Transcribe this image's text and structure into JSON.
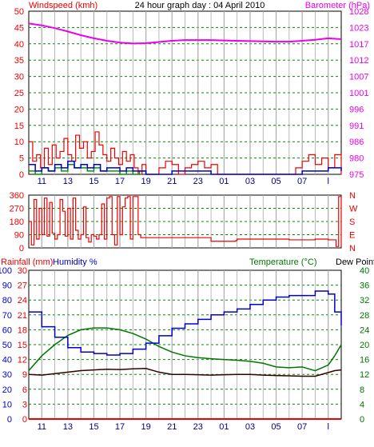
{
  "colors": {
    "wind": "#ee0000",
    "gust": "#ee0000",
    "wind_avg": "#0000cc",
    "wind_green": "#009900",
    "barometer": "#ee00ee",
    "direction": "#ee0000",
    "rain": "#ee0000",
    "humidity": "#0000cc",
    "temperature": "#007700",
    "dewpoint": "#330000",
    "grid_h": "#008800",
    "grid_v": "#aaaaaa",
    "hour_labels": "#000080"
  },
  "chart_data": [
    {
      "type": "line",
      "title": "24 hour graph day : 04 April 2010",
      "ylabel_left": "Windspeed (kmh)",
      "ylabel_right": "Barometer (hPa)",
      "x_ticks": [
        "11",
        "13",
        "15",
        "17",
        "19",
        "21",
        "23",
        "01",
        "03",
        "05",
        "07",
        "l"
      ],
      "left_ticks": [
        "0",
        "5",
        "10",
        "15",
        "20",
        "25",
        "30",
        "35",
        "40",
        "45",
        "50"
      ],
      "right_ticks": [
        "975",
        "980",
        "986",
        "991",
        "996",
        "1001",
        "1007",
        "1012",
        "1017",
        "1023",
        "1028"
      ],
      "ylim_left": [
        0,
        50
      ],
      "ylim_right": [
        975,
        1028
      ],
      "series": [
        {
          "name": "barometer",
          "x": [
            9,
            10,
            11,
            12,
            13,
            14,
            15,
            16,
            17,
            18,
            19,
            20,
            21,
            22,
            23,
            24,
            25,
            26,
            27,
            28,
            29,
            30,
            31,
            32,
            33
          ],
          "values": [
            1024,
            1023.4,
            1022.5,
            1021.4,
            1020.2,
            1019.2,
            1018.4,
            1017.8,
            1017.5,
            1017.6,
            1018,
            1018.4,
            1018.6,
            1018.6,
            1018.6,
            1018.5,
            1018.4,
            1018.3,
            1018.2,
            1018.1,
            1018.1,
            1018.4,
            1018.7,
            1019.2,
            1018.9
          ]
        },
        {
          "name": "gust",
          "x": [
            9,
            9.3,
            9.6,
            9.9,
            10.2,
            10.5,
            10.8,
            11.1,
            11.4,
            11.7,
            12,
            12.3,
            12.6,
            12.9,
            13.2,
            13.5,
            13.8,
            14.1,
            14.4,
            14.7,
            15,
            15.3,
            15.6,
            15.9,
            16.2,
            16.5,
            16.8,
            17.1,
            17.4,
            17.7,
            18,
            18.5,
            19,
            19.5,
            20,
            20.5,
            21,
            21.5,
            22,
            22.5,
            23,
            23.5,
            24,
            24.5,
            25,
            25.5,
            26,
            26.5,
            27,
            27.5,
            28,
            28.5,
            29,
            29.5,
            30,
            30.5,
            31,
            31.5,
            32,
            32.5,
            33
          ],
          "values": [
            10,
            4,
            6,
            2,
            8,
            3,
            9,
            5,
            7,
            11,
            6,
            4,
            12,
            8,
            10,
            5,
            7,
            13,
            9,
            6,
            4,
            8,
            5,
            3,
            7,
            4,
            6,
            2,
            0,
            3,
            0,
            0,
            2,
            4,
            3,
            0,
            2,
            3,
            4,
            2,
            3,
            0,
            0,
            0,
            0,
            0,
            0,
            0,
            0,
            0,
            0,
            0,
            0,
            2,
            4,
            6,
            3,
            5,
            2,
            6,
            0
          ]
        },
        {
          "name": "wind",
          "x": [
            9,
            9.5,
            10,
            10.5,
            11,
            11.5,
            12,
            12.5,
            13,
            13.5,
            14,
            14.5,
            15,
            15.5,
            16,
            16.5,
            17,
            17.5,
            18,
            19,
            20,
            21,
            22,
            23,
            24,
            25,
            26,
            27,
            28,
            29,
            30,
            31,
            32,
            33
          ],
          "values": [
            3,
            1,
            2,
            1,
            3,
            2,
            4,
            2,
            3,
            2,
            3,
            1,
            2,
            2,
            1,
            2,
            1,
            1,
            0,
            0,
            1,
            1,
            1,
            0,
            0,
            0,
            0,
            0,
            0,
            0,
            1,
            1,
            2,
            1
          ]
        },
        {
          "name": "wind_green",
          "x": [
            9,
            9.5,
            10,
            10.5,
            11,
            11.5,
            12,
            12.5,
            13,
            13.5,
            14,
            14.5,
            15,
            15.5,
            16,
            16.5,
            17,
            17.5,
            18
          ],
          "values": [
            1,
            0,
            2,
            1,
            2,
            1,
            3,
            2,
            2,
            1,
            2,
            1,
            1,
            1,
            0,
            1,
            0,
            1,
            0
          ]
        }
      ]
    },
    {
      "type": "line",
      "left_ticks": [
        "0",
        "90",
        "180",
        "270",
        "360"
      ],
      "right_ticks": [
        "N",
        "E",
        "S",
        "W",
        "N"
      ],
      "ylim": [
        0,
        360
      ],
      "series": [
        {
          "name": "wind direction",
          "x": [
            9,
            9.2,
            9.4,
            9.6,
            9.8,
            10,
            10.2,
            10.4,
            10.6,
            10.8,
            11,
            11.2,
            11.4,
            11.6,
            11.8,
            12,
            12.2,
            12.4,
            12.6,
            12.8,
            13,
            13.2,
            13.4,
            13.6,
            13.8,
            14,
            14.2,
            14.4,
            14.6,
            14.8,
            15,
            15.2,
            15.4,
            15.6,
            15.8,
            16,
            16.2,
            16.4,
            16.6,
            16.8,
            17,
            17.2,
            17.4,
            17.6,
            18,
            19,
            20,
            21,
            22,
            22.9,
            23,
            24,
            24.9,
            25,
            26,
            27,
            28,
            29,
            30,
            31,
            32,
            32.6,
            32.8,
            33
          ],
          "values": [
            180,
            20,
            330,
            60,
            270,
            90,
            340,
            80,
            310,
            100,
            60,
            90,
            330,
            250,
            80,
            270,
            60,
            340,
            120,
            60,
            90,
            280,
            70,
            40,
            90,
            80,
            60,
            90,
            300,
            60,
            340,
            350,
            90,
            20,
            350,
            90,
            280,
            340,
            350,
            60,
            350,
            350,
            90,
            70,
            70,
            70,
            70,
            70,
            70,
            70,
            45,
            45,
            50,
            60,
            60,
            60,
            60,
            55,
            55,
            60,
            55,
            10,
            350,
            10
          ]
        }
      ]
    },
    {
      "type": "line",
      "ylabel_left": "Rainfall (mm)",
      "ylabel_left2": "Humidity %",
      "ylabel_right": "Temperature (°C)",
      "ylabel_right2": "Dew Point",
      "rain_ticks": [
        "0",
        "3",
        "6",
        "9",
        "12",
        "15",
        "18",
        "21",
        "24",
        "27",
        "30"
      ],
      "humidity_ticks": [
        "0",
        "10",
        "20",
        "30",
        "40",
        "50",
        "60",
        "70",
        "80",
        "90",
        "100"
      ],
      "temp_ticks": [
        "0",
        "4",
        "8",
        "12",
        "16",
        "20",
        "24",
        "28",
        "32",
        "36",
        "40"
      ],
      "ylim_humidity": [
        0,
        100
      ],
      "ylim_temp": [
        0,
        40
      ],
      "series": [
        {
          "name": "Humidity %",
          "x": [
            9,
            10,
            11,
            12,
            13,
            14,
            15,
            16,
            17,
            18,
            19,
            20,
            21,
            22,
            23,
            24,
            25,
            26,
            27,
            28,
            29,
            30,
            31,
            32,
            32.5,
            33
          ],
          "values": [
            72,
            62,
            55,
            48,
            45,
            44,
            43,
            44,
            47,
            51,
            56,
            61,
            64,
            67,
            70,
            72,
            74,
            77,
            80,
            82,
            83,
            83,
            86,
            84,
            72,
            63
          ]
        },
        {
          "name": "Temperature (°C)",
          "x": [
            9,
            10,
            11,
            12,
            13,
            14,
            15,
            16,
            17,
            18,
            19,
            20,
            21,
            22,
            23,
            24,
            25,
            26,
            27,
            28,
            29,
            30,
            31,
            32,
            32.5,
            33
          ],
          "values": [
            13,
            17,
            20,
            22.5,
            24,
            24.5,
            24.5,
            24,
            23,
            21.5,
            19.5,
            18,
            17,
            16.5,
            16.2,
            16,
            15.8,
            15.5,
            15,
            14,
            13.8,
            14,
            13,
            14.5,
            17,
            20
          ]
        },
        {
          "name": "Dew Point",
          "x": [
            9,
            10,
            11,
            12,
            13,
            14,
            15,
            16,
            17,
            18,
            19,
            20,
            21,
            22,
            23,
            24,
            25,
            26,
            27,
            28,
            29,
            30,
            31,
            32,
            32.5,
            33
          ],
          "values": [
            12,
            11.8,
            12.2,
            12.6,
            13,
            13.2,
            13.4,
            13.3,
            13.5,
            13.6,
            12.6,
            12,
            12,
            11.9,
            11.8,
            11.9,
            12,
            12,
            11.8,
            11.7,
            11.6,
            11.5,
            11.5,
            12.5,
            13,
            13.2
          ]
        },
        {
          "name": "Rainfall (mm)",
          "x": [
            9,
            33
          ],
          "values": [
            0,
            0
          ]
        }
      ]
    }
  ]
}
